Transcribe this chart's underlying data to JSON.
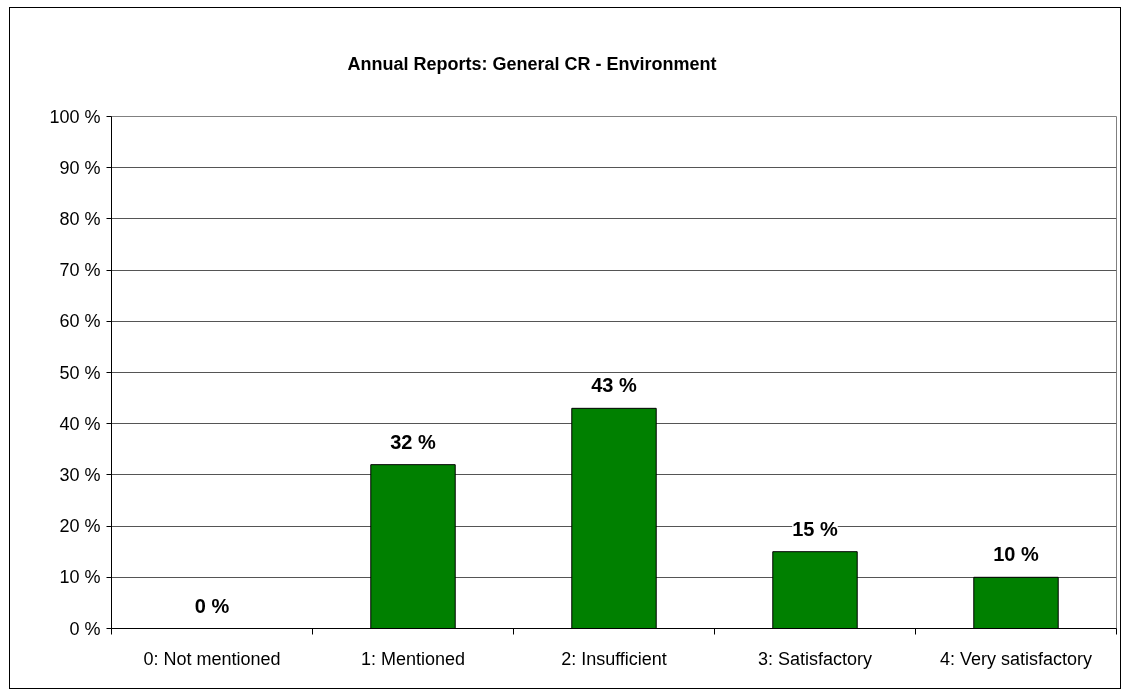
{
  "chart_data": {
    "type": "bar",
    "title": "Annual Reports: General CR - Environment",
    "categories": [
      "0: Not mentioned",
      "1: Mentioned",
      "2: Insufficient",
      "3: Satisfactory",
      "4: Very satisfactory"
    ],
    "values": [
      0,
      32,
      43,
      15,
      10
    ],
    "color": "#008000",
    "value_labels": [
      "0 %",
      "32 %",
      "43 %",
      "15 %",
      "10 %"
    ],
    "ylim": [
      0,
      100
    ],
    "yticks": [
      {
        "value": 0,
        "label": "0 %"
      },
      {
        "value": 10,
        "label": "10 %"
      },
      {
        "value": 20,
        "label": "20 %"
      },
      {
        "value": 30,
        "label": "30 %"
      },
      {
        "value": 40,
        "label": "40 %"
      },
      {
        "value": 50,
        "label": "50 %"
      },
      {
        "value": 60,
        "label": "60 %"
      },
      {
        "value": 70,
        "label": "70 %"
      },
      {
        "value": 80,
        "label": "80 %"
      },
      {
        "value": 90,
        "label": "90 %"
      },
      {
        "value": 100,
        "label": "100 %"
      }
    ],
    "grid": "y"
  }
}
